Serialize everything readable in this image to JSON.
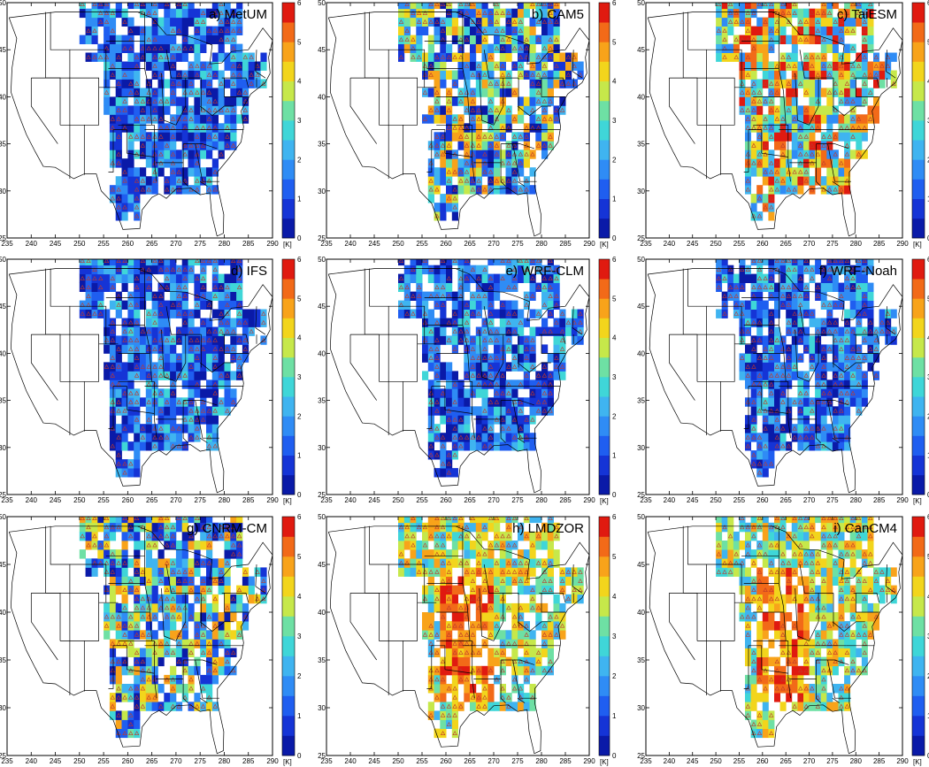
{
  "figure": {
    "colorbar": {
      "ticks": [
        "0",
        "1",
        "2",
        "3",
        "4",
        "5",
        "6"
      ],
      "unit": "[K]",
      "levels": 12,
      "colors": [
        "#0a1aa8",
        "#1534d6",
        "#1f5ef0",
        "#2f8cf5",
        "#3fb4f0",
        "#3fd6d8",
        "#6ee0a4",
        "#c6e84a",
        "#f2d51c",
        "#f8a31a",
        "#f26a18",
        "#e01a10"
      ]
    },
    "panels": [
      {
        "label": "a) MetUM",
        "scheme": "cool"
      },
      {
        "label": "b) CAM5",
        "scheme": "mixed"
      },
      {
        "label": "c) TaiESM",
        "scheme": "warm"
      },
      {
        "label": "d) IFS",
        "scheme": "cool"
      },
      {
        "label": "e) WRF-CLM",
        "scheme": "cool"
      },
      {
        "label": "f) WRF-Noah",
        "scheme": "cool"
      },
      {
        "label": "g) CNRM-CM",
        "scheme": "mixed"
      },
      {
        "label": "h) LMDZOR",
        "scheme": "hot"
      },
      {
        "label": "i) CanCM4",
        "scheme": "hot"
      }
    ],
    "x_ticks": [
      "235",
      "240",
      "245",
      "250",
      "255",
      "260",
      "265",
      "270",
      "275",
      "280",
      "285",
      "290"
    ],
    "y_ticks": [
      "25",
      "30",
      "35",
      "40",
      "45",
      "50"
    ],
    "x_range": [
      235,
      290
    ],
    "y_range": [
      25,
      50
    ],
    "marker": "triangle"
  }
}
